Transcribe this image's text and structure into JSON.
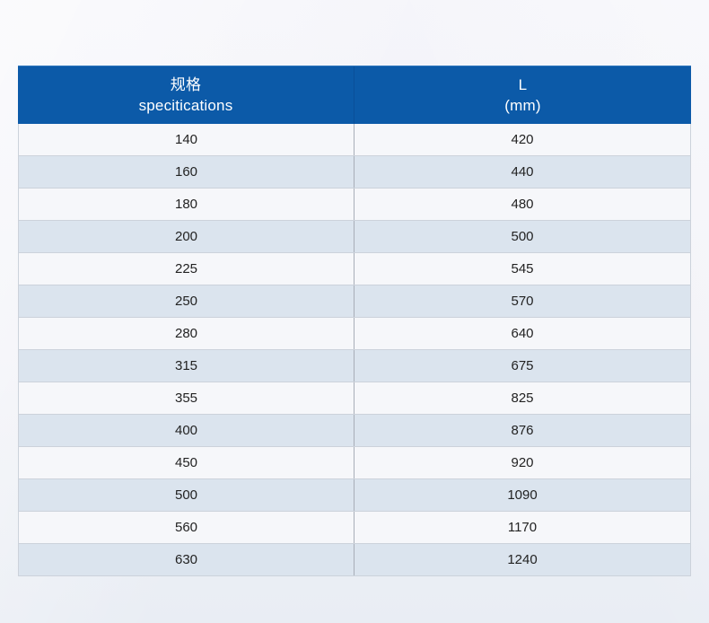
{
  "table": {
    "columns": [
      {
        "line1": "规格",
        "line2": "specitications"
      },
      {
        "line1": "L",
        "line2": "(mm)"
      }
    ],
    "rows": [
      {
        "spec": "140",
        "length": "420"
      },
      {
        "spec": "160",
        "length": "440"
      },
      {
        "spec": "180",
        "length": "480"
      },
      {
        "spec": "200",
        "length": "500"
      },
      {
        "spec": "225",
        "length": "545"
      },
      {
        "spec": "250",
        "length": "570"
      },
      {
        "spec": "280",
        "length": "640"
      },
      {
        "spec": "315",
        "length": "675"
      },
      {
        "spec": "355",
        "length": "825"
      },
      {
        "spec": "400",
        "length": "876"
      },
      {
        "spec": "450",
        "length": "920"
      },
      {
        "spec": "500",
        "length": "1090"
      },
      {
        "spec": "560",
        "length": "1170"
      },
      {
        "spec": "630",
        "length": "1240"
      }
    ]
  },
  "colors": {
    "header_bg": "#0c5aa8",
    "header_divider": "#0a4f99",
    "row_base": "#f6f7fa",
    "row_alt": "#dbe4ee",
    "row_separator": "#ccd2db",
    "column_divider": "#a8aeb8",
    "header_text": "#ffffff",
    "body_text": "#222222",
    "page_background": "#f1f2f7"
  }
}
